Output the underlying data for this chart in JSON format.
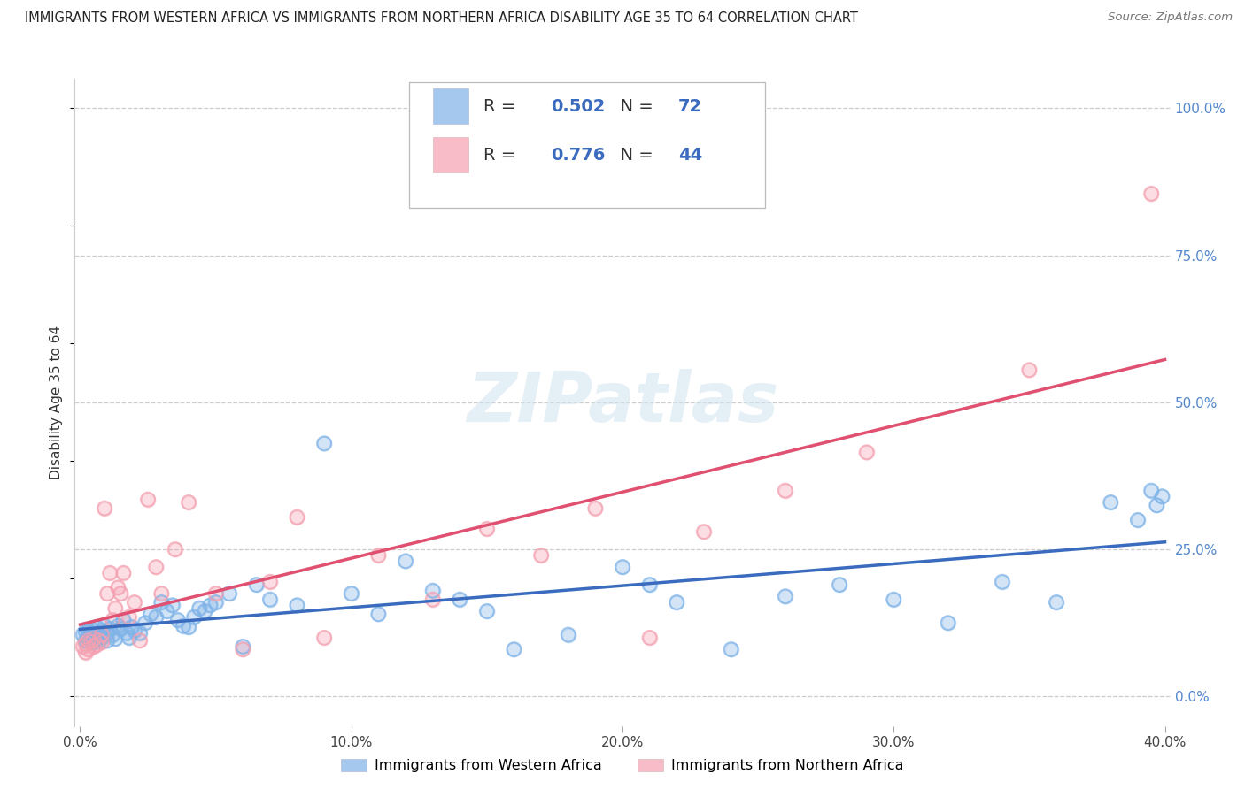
{
  "title": "IMMIGRANTS FROM WESTERN AFRICA VS IMMIGRANTS FROM NORTHERN AFRICA DISABILITY AGE 35 TO 64 CORRELATION CHART",
  "source": "Source: ZipAtlas.com",
  "ylabel": "Disability Age 35 to 64",
  "xlim": [
    0.0,
    0.4
  ],
  "ylim": [
    0.0,
    1.0
  ],
  "ytick_labels": [
    "0.0%",
    "25.0%",
    "50.0%",
    "75.0%",
    "100.0%"
  ],
  "ytick_values": [
    0.0,
    0.25,
    0.5,
    0.75,
    1.0
  ],
  "xtick_labels": [
    "0.0%",
    "10.0%",
    "20.0%",
    "30.0%",
    "40.0%"
  ],
  "xtick_values": [
    0.0,
    0.1,
    0.2,
    0.3,
    0.4
  ],
  "western_color": "#7fb3e8",
  "northern_color": "#f4a0b0",
  "western_line_color": "#3a6bbf",
  "northern_line_color": "#e05070",
  "legend_text_color": "#3a6bbf",
  "R_western": 0.502,
  "N_western": 72,
  "R_northern": 0.776,
  "N_northern": 44,
  "legend_label_western": "Immigrants from Western Africa",
  "legend_label_northern": "Immigrants from Northern Africa",
  "western_x": [
    0.001,
    0.002,
    0.002,
    0.003,
    0.003,
    0.004,
    0.004,
    0.005,
    0.005,
    0.006,
    0.006,
    0.007,
    0.007,
    0.008,
    0.008,
    0.009,
    0.01,
    0.01,
    0.011,
    0.012,
    0.013,
    0.014,
    0.015,
    0.016,
    0.017,
    0.018,
    0.019,
    0.02,
    0.022,
    0.024,
    0.026,
    0.028,
    0.03,
    0.032,
    0.034,
    0.036,
    0.038,
    0.04,
    0.042,
    0.044,
    0.046,
    0.048,
    0.05,
    0.055,
    0.06,
    0.065,
    0.07,
    0.08,
    0.09,
    0.1,
    0.11,
    0.12,
    0.13,
    0.14,
    0.15,
    0.16,
    0.18,
    0.2,
    0.21,
    0.22,
    0.24,
    0.26,
    0.28,
    0.3,
    0.32,
    0.34,
    0.36,
    0.38,
    0.39,
    0.395,
    0.397,
    0.399
  ],
  "western_y": [
    0.105,
    0.11,
    0.095,
    0.112,
    0.098,
    0.108,
    0.115,
    0.1,
    0.092,
    0.118,
    0.105,
    0.095,
    0.108,
    0.112,
    0.1,
    0.12,
    0.095,
    0.108,
    0.115,
    0.105,
    0.098,
    0.12,
    0.115,
    0.13,
    0.108,
    0.1,
    0.118,
    0.112,
    0.108,
    0.125,
    0.14,
    0.135,
    0.16,
    0.145,
    0.155,
    0.13,
    0.12,
    0.118,
    0.135,
    0.15,
    0.145,
    0.155,
    0.16,
    0.175,
    0.085,
    0.19,
    0.165,
    0.155,
    0.43,
    0.175,
    0.14,
    0.23,
    0.18,
    0.165,
    0.145,
    0.08,
    0.105,
    0.22,
    0.19,
    0.16,
    0.08,
    0.17,
    0.19,
    0.165,
    0.125,
    0.195,
    0.16,
    0.33,
    0.3,
    0.35,
    0.325,
    0.34
  ],
  "northern_x": [
    0.001,
    0.002,
    0.002,
    0.003,
    0.003,
    0.004,
    0.005,
    0.005,
    0.006,
    0.007,
    0.008,
    0.008,
    0.009,
    0.01,
    0.011,
    0.012,
    0.013,
    0.014,
    0.015,
    0.016,
    0.018,
    0.02,
    0.022,
    0.025,
    0.028,
    0.03,
    0.035,
    0.04,
    0.05,
    0.06,
    0.07,
    0.08,
    0.09,
    0.11,
    0.13,
    0.15,
    0.17,
    0.19,
    0.21,
    0.23,
    0.26,
    0.29,
    0.35,
    0.395
  ],
  "northern_y": [
    0.085,
    0.09,
    0.075,
    0.095,
    0.08,
    0.092,
    0.085,
    0.098,
    0.088,
    0.095,
    0.105,
    0.092,
    0.32,
    0.175,
    0.21,
    0.13,
    0.15,
    0.185,
    0.175,
    0.21,
    0.135,
    0.16,
    0.095,
    0.335,
    0.22,
    0.175,
    0.25,
    0.33,
    0.175,
    0.08,
    0.195,
    0.305,
    0.1,
    0.24,
    0.165,
    0.285,
    0.24,
    0.32,
    0.1,
    0.28,
    0.35,
    0.415,
    0.555,
    0.855
  ]
}
